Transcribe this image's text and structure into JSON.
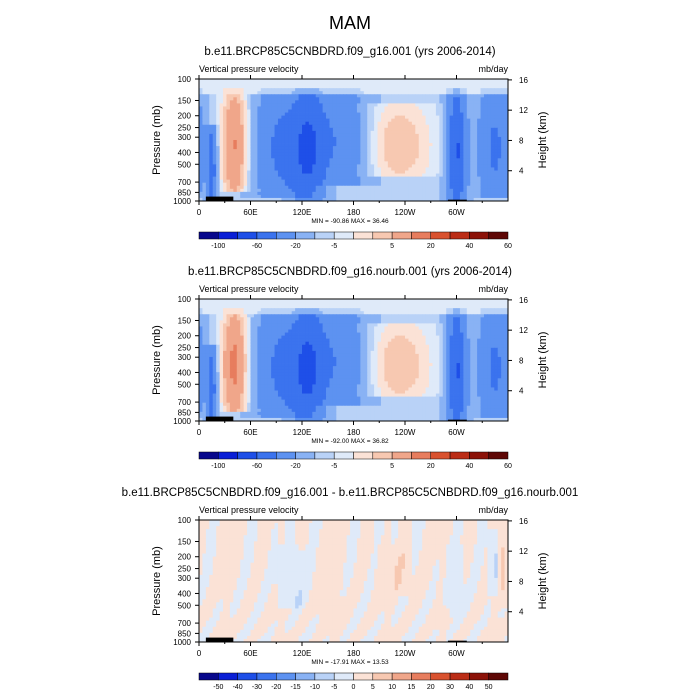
{
  "figure": {
    "title": "MAM"
  },
  "colors": {
    "ramp_full": [
      "#08088c",
      "#0a1fd6",
      "#1e4fe8",
      "#3b73ee",
      "#5d92f1",
      "#89b2f4",
      "#b9d2f7",
      "#dfeaf9",
      "#fbe2d6",
      "#f7c8b1",
      "#f0a68a",
      "#e77d5e",
      "#d9522f",
      "#bb2d16",
      "#8c1208",
      "#5e0705"
    ],
    "ramp_diff": [
      "#08088c",
      "#0a1fd6",
      "#1e4fe8",
      "#3b73ee",
      "#5d92f1",
      "#89b2f4",
      "#b9d2f7",
      "#dfeaf9",
      "#fbe2d6",
      "#f7c8b1",
      "#f0a68a",
      "#e77d5e",
      "#d9522f",
      "#bb2d16",
      "#8c1208",
      "#5e0705"
    ]
  },
  "chart_data": [
    {
      "type": "heatmap",
      "title": "b.e11.BRCP85C5CNBDRD.f09_g16.001 (yrs 2006-2014)",
      "left_label": "Vertical pressure velocity",
      "right_label": "mb/day",
      "ylabel": "Pressure (mb)",
      "y2label": "Height (km)",
      "x_ticks": [
        "0",
        "60E",
        "120E",
        "180",
        "120W",
        "60W"
      ],
      "x_tick_values": [
        0,
        60,
        120,
        180,
        240,
        300
      ],
      "x_range": [
        0,
        360
      ],
      "y_ticks": [
        "100",
        "150",
        "200",
        "250",
        "300",
        "400",
        "500",
        "700",
        "850",
        "1000"
      ],
      "y_tick_values": [
        100,
        150,
        200,
        250,
        300,
        400,
        500,
        700,
        850,
        1000
      ],
      "y_range": [
        1000,
        100
      ],
      "y2_ticks": [
        "4",
        "8",
        "12",
        "16"
      ],
      "y2_tick_values": [
        4,
        8,
        12,
        16
      ],
      "min_max": "MIN = -90.86  MAX = 36.46",
      "colorbar_labels": [
        "-100",
        "-60",
        "-20",
        "-5",
        "5",
        "20",
        "40",
        "60"
      ],
      "colorbar_levels": [
        "-100",
        "-80",
        "-60",
        "-40",
        "-20",
        "-10",
        "-5",
        "0",
        "5",
        "10",
        "20",
        "30",
        "40",
        "50",
        "60"
      ],
      "features": [
        {
          "lon": 15,
          "p_min": 300,
          "p_max": 1000,
          "amp": -45,
          "width": 4
        },
        {
          "lon": 42,
          "p_min": 150,
          "p_max": 800,
          "amp": 30,
          "width": 12
        },
        {
          "lon": 95,
          "p_min": 150,
          "p_max": 900,
          "amp": -35,
          "width": 22
        },
        {
          "lon": 128,
          "p_min": 150,
          "p_max": 1000,
          "amp": -40,
          "width": 14
        },
        {
          "lon": 165,
          "p_min": 150,
          "p_max": 700,
          "amp": -30,
          "width": 22
        },
        {
          "lon": 232,
          "p_min": 200,
          "p_max": 600,
          "amp": 18,
          "width": 30
        },
        {
          "lon": 300,
          "p_min": 150,
          "p_max": 1000,
          "amp": -55,
          "width": 8
        },
        {
          "lon": 345,
          "p_min": 150,
          "p_max": 900,
          "amp": -35,
          "width": 14
        }
      ]
    },
    {
      "type": "heatmap",
      "title": "b.e11.BRCP85C5CNBDRD.f09_g16.nourb.001 (yrs 2006-2014)",
      "left_label": "Vertical pressure velocity",
      "right_label": "mb/day",
      "ylabel": "Pressure (mb)",
      "y2label": "Height (km)",
      "x_ticks": [
        "0",
        "60E",
        "120E",
        "180",
        "120W",
        "60W"
      ],
      "x_tick_values": [
        0,
        60,
        120,
        180,
        240,
        300
      ],
      "x_range": [
        0,
        360
      ],
      "y_ticks": [
        "100",
        "150",
        "200",
        "250",
        "300",
        "400",
        "500",
        "700",
        "850",
        "1000"
      ],
      "y_tick_values": [
        100,
        150,
        200,
        250,
        300,
        400,
        500,
        700,
        850,
        1000
      ],
      "y_range": [
        1000,
        100
      ],
      "y2_ticks": [
        "4",
        "8",
        "12",
        "16"
      ],
      "y2_tick_values": [
        4,
        8,
        12,
        16
      ],
      "min_max": "MIN = -92.00  MAX = 36.82",
      "colorbar_labels": [
        "-100",
        "-60",
        "-20",
        "-5",
        "5",
        "20",
        "40",
        "60"
      ],
      "colorbar_levels": [
        "-100",
        "-80",
        "-60",
        "-40",
        "-20",
        "-10",
        "-5",
        "0",
        "5",
        "10",
        "20",
        "30",
        "40",
        "50",
        "60"
      ],
      "features": [
        {
          "lon": 15,
          "p_min": 300,
          "p_max": 1000,
          "amp": -45,
          "width": 4
        },
        {
          "lon": 42,
          "p_min": 150,
          "p_max": 800,
          "amp": 32,
          "width": 12
        },
        {
          "lon": 95,
          "p_min": 150,
          "p_max": 900,
          "amp": -35,
          "width": 22
        },
        {
          "lon": 128,
          "p_min": 150,
          "p_max": 1000,
          "amp": -40,
          "width": 14
        },
        {
          "lon": 165,
          "p_min": 150,
          "p_max": 700,
          "amp": -30,
          "width": 22
        },
        {
          "lon": 232,
          "p_min": 200,
          "p_max": 600,
          "amp": 18,
          "width": 30
        },
        {
          "lon": 300,
          "p_min": 150,
          "p_max": 1000,
          "amp": -55,
          "width": 8
        },
        {
          "lon": 345,
          "p_min": 150,
          "p_max": 900,
          "amp": -35,
          "width": 14
        }
      ]
    },
    {
      "type": "heatmap",
      "title": "b.e11.BRCP85C5CNBDRD.f09_g16.001 - b.e11.BRCP85C5CNBDRD.f09_g16.nourb.001",
      "left_label": "Vertical pressure velocity",
      "right_label": "mb/day",
      "ylabel": "Pressure (mb)",
      "y2label": "Height (km)",
      "x_ticks": [
        "0",
        "60E",
        "120E",
        "180",
        "120W",
        "60W"
      ],
      "x_tick_values": [
        0,
        60,
        120,
        180,
        240,
        300
      ],
      "x_range": [
        0,
        360
      ],
      "y_ticks": [
        "100",
        "150",
        "200",
        "250",
        "300",
        "400",
        "500",
        "700",
        "850",
        "1000"
      ],
      "y_tick_values": [
        100,
        150,
        200,
        250,
        300,
        400,
        500,
        700,
        850,
        1000
      ],
      "y_range": [
        1000,
        100
      ],
      "y2_ticks": [
        "4",
        "8",
        "12",
        "16"
      ],
      "y2_tick_values": [
        4,
        8,
        12,
        16
      ],
      "min_max": "MIN = -17.91  MAX = 13.53",
      "colorbar_labels": [
        "-50",
        "-40",
        "-30",
        "-20",
        "-15",
        "-10",
        "-5",
        "0",
        "5",
        "10",
        "15",
        "20",
        "30",
        "40",
        "50"
      ],
      "colorbar_levels": [
        "-50",
        "-40",
        "-30",
        "-20",
        "-15",
        "-10",
        "-5",
        "0",
        "5",
        "10",
        "15",
        "20",
        "30",
        "40",
        "50"
      ],
      "features": [
        {
          "lon": 110,
          "p_min": 200,
          "p_max": 500,
          "amp": -6,
          "width": 10
        },
        {
          "lon": 150,
          "p_min": 200,
          "p_max": 700,
          "amp": 4,
          "width": 8
        },
        {
          "lon": 230,
          "p_min": 200,
          "p_max": 400,
          "amp": 4,
          "width": 14
        },
        {
          "lon": 300,
          "p_min": 200,
          "p_max": 600,
          "amp": -5,
          "width": 6
        },
        {
          "lon": 345,
          "p_min": 150,
          "p_max": 400,
          "amp": -8,
          "width": 4
        },
        {
          "lon": 352,
          "p_min": 150,
          "p_max": 500,
          "amp": 6,
          "width": 4
        }
      ]
    }
  ]
}
